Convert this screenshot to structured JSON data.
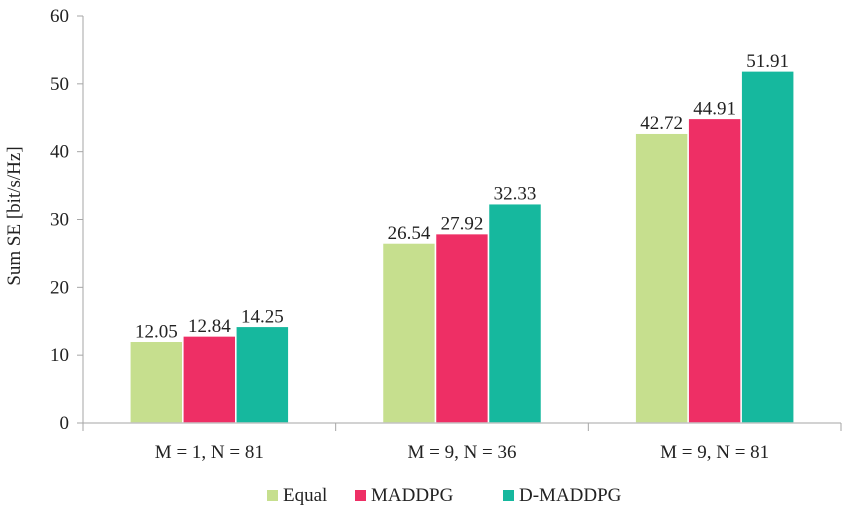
{
  "chart_data": {
    "type": "bar",
    "categories": [
      "M = 1, N = 81",
      "M = 9, N = 36",
      "M = 9, N = 81"
    ],
    "series": [
      {
        "name": "Equal",
        "color": "#c6df8e",
        "values": [
          12.05,
          26.54,
          42.72
        ],
        "labels": [
          "12.05",
          "26.54",
          "42.72"
        ]
      },
      {
        "name": "MADDPG",
        "color": "#ee2f65",
        "values": [
          12.84,
          27.92,
          44.91
        ],
        "labels": [
          "12.84",
          "27.92",
          "44.91"
        ]
      },
      {
        "name": "D-MADDPG",
        "color": "#16b89e",
        "values": [
          14.25,
          32.33,
          51.91
        ],
        "labels": [
          "14.25",
          "32.33",
          "51.91"
        ]
      }
    ],
    "ylabel": "Sum SE [bit/s/Hz]",
    "xlabel": "",
    "ylim": [
      0,
      60
    ],
    "yticks": [
      "0",
      "10",
      "20",
      "30",
      "40",
      "50",
      "60"
    ],
    "grid": false,
    "legend_position": "bottom"
  }
}
